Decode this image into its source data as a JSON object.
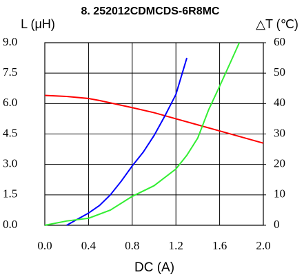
{
  "chart_data": {
    "type": "line",
    "title": "8. 252012CDMCDS-6R8MC",
    "y_label": "L (μH)",
    "y2_label": "△T (℃)",
    "x_label": "DC (A)",
    "xlim": [
      0,
      2.0
    ],
    "xticks": [
      {
        "value": 0,
        "label": "0.0"
      },
      {
        "value": 0.4,
        "label": "0.4"
      },
      {
        "value": 0.8,
        "label": "0.8"
      },
      {
        "value": 1.2,
        "label": "1.2"
      },
      {
        "value": 1.6,
        "label": "1.6"
      },
      {
        "value": 2.0,
        "label": "2.0"
      }
    ],
    "ylim": [
      0,
      9.0
    ],
    "yticks": [
      {
        "value": 0,
        "label": "0.0"
      },
      1.5,
      {
        "value": 3,
        "label": "3.0"
      },
      4.5,
      {
        "value": 6,
        "label": "6.0"
      },
      7.5,
      {
        "value": 9,
        "label": "9.0"
      }
    ],
    "y2lim": [
      0,
      60
    ],
    "y2ticks": [
      0,
      10,
      20,
      30,
      40,
      50,
      60
    ],
    "grid": true,
    "series": [
      {
        "color": "#ff0000",
        "axis": "y",
        "x": [
          0,
          0.2,
          0.4,
          0.5,
          0.8,
          1.0,
          1.2,
          1.4,
          1.6,
          1.8,
          2.0
        ],
        "values": [
          6.4,
          6.35,
          6.25,
          6.15,
          5.8,
          5.55,
          5.25,
          4.95,
          4.65,
          4.35,
          4.05
        ]
      },
      {
        "color": "#0000ff",
        "axis": "y2",
        "x": [
          0.2,
          0.3,
          0.4,
          0.5,
          0.6,
          0.7,
          0.8,
          0.9,
          1.0,
          1.1,
          1.2,
          1.3
        ],
        "values": [
          0,
          2,
          4,
          6.5,
          10,
          14.5,
          19.5,
          24,
          29.5,
          36,
          43,
          55
        ]
      },
      {
        "color": "#33ee33",
        "axis": "y2",
        "x": [
          0,
          0.2,
          0.4,
          0.6,
          0.8,
          1.0,
          1.2,
          1.3,
          1.4,
          1.5,
          1.6,
          1.7,
          1.78
        ],
        "values": [
          0,
          1.4,
          2.3,
          5,
          9.5,
          13,
          18.5,
          23,
          28.7,
          38,
          45.7,
          53.6,
          60
        ]
      }
    ]
  }
}
